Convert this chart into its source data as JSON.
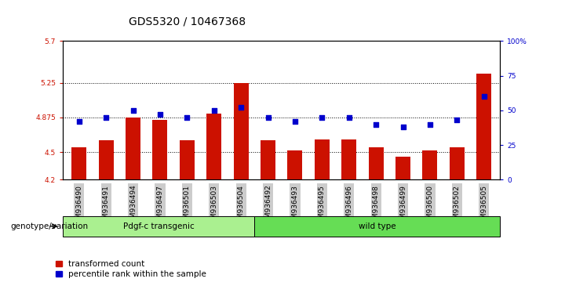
{
  "title": "GDS5320 / 10467368",
  "samples": [
    "GSM936490",
    "GSM936491",
    "GSM936494",
    "GSM936497",
    "GSM936501",
    "GSM936503",
    "GSM936504",
    "GSM936492",
    "GSM936493",
    "GSM936495",
    "GSM936496",
    "GSM936498",
    "GSM936499",
    "GSM936500",
    "GSM936502",
    "GSM936505"
  ],
  "transformed_count": [
    4.55,
    4.63,
    4.875,
    4.845,
    4.63,
    4.92,
    5.25,
    4.63,
    4.52,
    4.635,
    4.635,
    4.55,
    4.45,
    4.52,
    4.555,
    5.35
  ],
  "percentile_rank": [
    42,
    45,
    50,
    47,
    45,
    50,
    52,
    45,
    42,
    45,
    45,
    40,
    38,
    40,
    43,
    60
  ],
  "ylim_left": [
    4.2,
    5.7
  ],
  "ylim_right": [
    0,
    100
  ],
  "yticks_left": [
    4.2,
    4.5,
    4.875,
    5.25,
    5.7
  ],
  "yticks_right": [
    0,
    25,
    50,
    75,
    100
  ],
  "ytick_labels_right": [
    "0",
    "25",
    "50",
    "75",
    "100%"
  ],
  "grid_vals": [
    4.5,
    4.875,
    5.25
  ],
  "bar_color": "#cc1100",
  "dot_color": "#0000cc",
  "bar_bottom": 4.2,
  "group1_label": "Pdgf-c transgenic",
  "group2_label": "wild type",
  "group1_color": "#aaf090",
  "group2_color": "#66dd55",
  "group1_count": 7,
  "group2_count": 9,
  "xlabel_left": "genotype/variation",
  "legend_bar": "transformed count",
  "legend_dot": "percentile rank within the sample",
  "bg_color": "#ffffff",
  "plot_bg": "#ffffff",
  "tick_bg": "#cccccc",
  "title_fontsize": 10,
  "tick_fontsize": 6.5,
  "label_fontsize": 7.5
}
